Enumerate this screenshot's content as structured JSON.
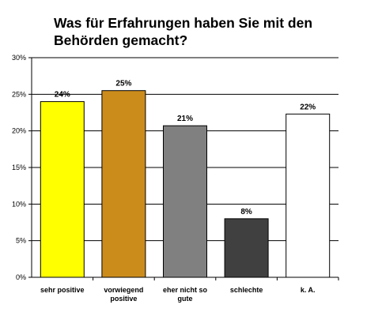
{
  "chart_data": {
    "type": "bar",
    "title_lines": [
      "Was für Erfahrungen haben Sie mit den",
      "Behörden gemacht?"
    ],
    "categories": [
      [
        "sehr positive"
      ],
      [
        "vorwiegend",
        "positive"
      ],
      [
        "eher nicht so",
        "gute"
      ],
      [
        "schlechte"
      ],
      [
        "k. A."
      ]
    ],
    "values": [
      24,
      25.5,
      20.7,
      8,
      22.3
    ],
    "data_labels": [
      "24%",
      "25%",
      "21%",
      "8%",
      "22%"
    ],
    "bar_colors": [
      "#ffff00",
      "#cc8c1c",
      "#808080",
      "#404040",
      "#ffffff"
    ],
    "ylim": [
      0,
      30
    ],
    "yticks": [
      0,
      5,
      10,
      15,
      20,
      25,
      30
    ],
    "ytick_labels": [
      "0%",
      "5%",
      "10%",
      "15%",
      "20%",
      "25%",
      "30%"
    ],
    "grid": true,
    "xlabel": "",
    "ylabel": ""
  }
}
